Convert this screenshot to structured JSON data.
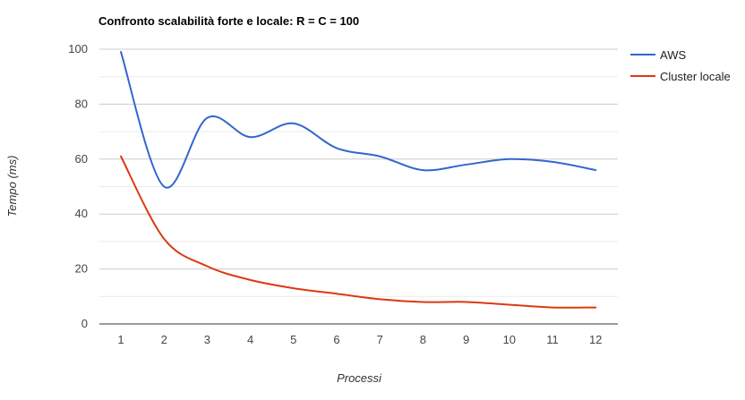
{
  "chart_data": {
    "type": "line",
    "title": "Confronto scalabilità forte e locale: R = C = 100",
    "xlabel": "Processi",
    "ylabel": "Tempo (ms)",
    "x": [
      1,
      2,
      3,
      4,
      5,
      6,
      7,
      8,
      9,
      10,
      11,
      12
    ],
    "ylim": [
      0,
      100
    ],
    "yticks": [
      0,
      20,
      40,
      60,
      80,
      100
    ],
    "grid": true,
    "legend_position": "right",
    "series": [
      {
        "name": "AWS",
        "color": "#3366cc",
        "values": [
          99,
          50,
          75,
          68,
          73,
          64,
          61,
          56,
          58,
          60,
          59,
          56
        ]
      },
      {
        "name": "Cluster locale",
        "color": "#dc3912",
        "values": [
          61,
          31,
          21,
          16,
          13,
          11,
          9,
          8,
          8,
          7,
          6,
          6
        ]
      }
    ]
  }
}
